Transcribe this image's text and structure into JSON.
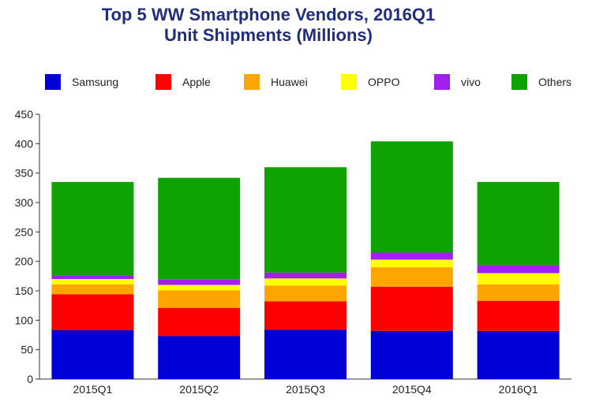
{
  "chart_data": {
    "type": "bar",
    "stacked": true,
    "title": "Top 5 WW Smartphone Vendors, 2016Q1",
    "subtitle": "Unit Shipments (Millions)",
    "categories": [
      "2015Q1",
      "2015Q2",
      "2015Q3",
      "2015Q4",
      "2016Q1"
    ],
    "series": [
      {
        "name": "Samsung",
        "color": "#0000d6",
        "values": [
          83,
          73,
          84,
          82,
          82
        ]
      },
      {
        "name": "Apple",
        "color": "#ff0000",
        "values": [
          61,
          48,
          48,
          75,
          51
        ]
      },
      {
        "name": "Huawei",
        "color": "#ffa500",
        "values": [
          17,
          30,
          27,
          33,
          28
        ]
      },
      {
        "name": "OPPO",
        "color": "#ffff00",
        "values": [
          9,
          9,
          12,
          13,
          19
        ]
      },
      {
        "name": "vivo",
        "color": "#a020f0",
        "values": [
          6,
          9,
          10,
          12,
          14
        ]
      },
      {
        "name": "Others",
        "color": "#0ea300",
        "values": [
          159,
          173,
          179,
          189,
          141
        ]
      }
    ],
    "ylim": [
      0,
      450
    ],
    "yticks": [
      0,
      50,
      100,
      150,
      200,
      250,
      300,
      350,
      400,
      450
    ],
    "xlabel": "",
    "ylabel": "",
    "grid": false,
    "legend_position": "top"
  }
}
